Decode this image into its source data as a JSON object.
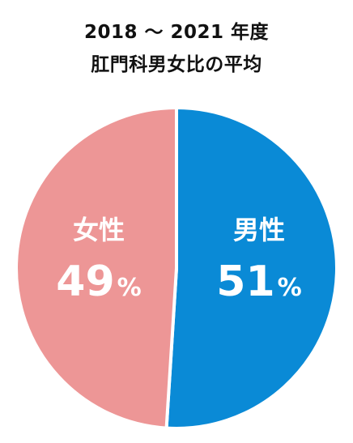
{
  "title": {
    "line1": "2018 ～ 2021 年度",
    "line2": "肛門科男女比の平均"
  },
  "chart_data": {
    "type": "pie",
    "title": "2018 ～ 2021 年度 肛門科男女比の平均",
    "unit": "%",
    "slices": [
      {
        "label": "男性",
        "value": 51,
        "color": "#0a8ad6"
      },
      {
        "label": "女性",
        "value": 49,
        "color": "#ed9696"
      }
    ],
    "start_angle_deg": 0,
    "direction": "clockwise",
    "separator_color": "#ffffff"
  }
}
